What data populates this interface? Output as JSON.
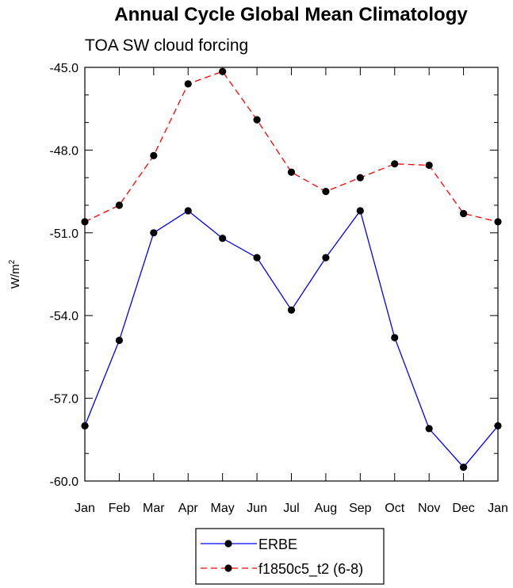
{
  "chart_data": {
    "type": "line",
    "title": "Annual Cycle Global Mean Climatology",
    "subtitle": "TOA SW cloud forcing",
    "ylabel": "W/m",
    "ylabel_superscript": "2",
    "ylim": [
      -60.0,
      -45.0
    ],
    "yticks": [
      -45.0,
      -48.0,
      -51.0,
      -54.0,
      -57.0,
      -60.0
    ],
    "ytick_labels": [
      "-45.0",
      "-48.0",
      "-51.0",
      "-54.0",
      "-57.0",
      "-60.0"
    ],
    "categories": [
      "Jan",
      "Feb",
      "Mar",
      "Apr",
      "May",
      "Jun",
      "Jul",
      "Aug",
      "Sep",
      "Oct",
      "Nov",
      "Dec",
      "Jan"
    ],
    "series": [
      {
        "name": "ERBE",
        "color": "#0000ff",
        "dash": "solid",
        "values": [
          -58.0,
          -54.9,
          -51.0,
          -50.2,
          -51.2,
          -51.9,
          -53.8,
          -51.9,
          -50.2,
          -54.8,
          -58.1,
          -59.5,
          -58.0
        ]
      },
      {
        "name": "f1850c5_t2 (6-8)",
        "color": "#ff0000",
        "dash": "dashed",
        "values": [
          -50.6,
          -50.0,
          -48.2,
          -45.6,
          -45.15,
          -46.9,
          -48.8,
          -49.5,
          -49.0,
          -48.5,
          -48.55,
          -50.3,
          -50.6
        ]
      }
    ],
    "legend_position": "bottom-center",
    "grid": false
  }
}
